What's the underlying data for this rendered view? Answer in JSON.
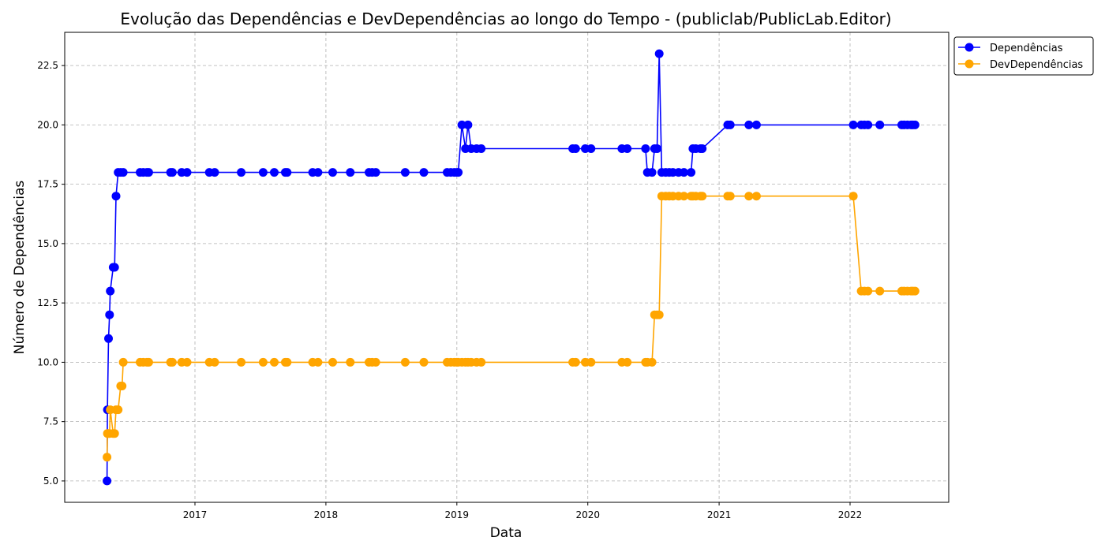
{
  "chart_data": {
    "type": "line",
    "title": "Evolução das Dependências e DevDependências ao longo do Tempo - (publiclab/PublicLab.Editor)",
    "xlabel": "Data",
    "ylabel": "Número de Dependências",
    "x_tick_labels": [
      "2017",
      "2018",
      "2019",
      "2020",
      "2021",
      "2022"
    ],
    "y_tick_labels": [
      "5.0",
      "7.5",
      "10.0",
      "12.5",
      "15.0",
      "17.5",
      "20.0",
      "22.5"
    ],
    "xlim": [
      "2016-01-04",
      "2022-10-03"
    ],
    "ylim": [
      4.1,
      23.9
    ],
    "grid": true,
    "legend_position": "outside-top-right",
    "series": [
      {
        "name": "Dependências",
        "color": "#0000ff",
        "points": [
          [
            "2016-05-01",
            5
          ],
          [
            "2016-05-02",
            8
          ],
          [
            "2016-05-05",
            11
          ],
          [
            "2016-05-08",
            12
          ],
          [
            "2016-05-10",
            13
          ],
          [
            "2016-05-18",
            14
          ],
          [
            "2016-05-22",
            14
          ],
          [
            "2016-05-26",
            17
          ],
          [
            "2016-06-01",
            18
          ],
          [
            "2016-06-08",
            18
          ],
          [
            "2016-06-15",
            18
          ],
          [
            "2016-08-01",
            18
          ],
          [
            "2016-08-10",
            18
          ],
          [
            "2016-08-20",
            18
          ],
          [
            "2016-08-25",
            18
          ],
          [
            "2016-10-25",
            18
          ],
          [
            "2016-10-30",
            18
          ],
          [
            "2016-11-25",
            18
          ],
          [
            "2016-12-10",
            18
          ],
          [
            "2017-02-10",
            18
          ],
          [
            "2017-02-25",
            18
          ],
          [
            "2017-05-10",
            18
          ],
          [
            "2017-07-10",
            18
          ],
          [
            "2017-08-10",
            18
          ],
          [
            "2017-09-10",
            18
          ],
          [
            "2017-09-15",
            18
          ],
          [
            "2017-11-25",
            18
          ],
          [
            "2017-12-10",
            18
          ],
          [
            "2018-01-20",
            18
          ],
          [
            "2018-03-10",
            18
          ],
          [
            "2018-05-01",
            18
          ],
          [
            "2018-05-10",
            18
          ],
          [
            "2018-05-20",
            18
          ],
          [
            "2018-08-10",
            18
          ],
          [
            "2018-10-01",
            18
          ],
          [
            "2018-12-05",
            18
          ],
          [
            "2018-12-15",
            18
          ],
          [
            "2018-12-25",
            18
          ],
          [
            "2019-01-01",
            18
          ],
          [
            "2019-01-05",
            18
          ],
          [
            "2019-01-15",
            20
          ],
          [
            "2019-01-25",
            19
          ],
          [
            "2019-02-01",
            20
          ],
          [
            "2019-02-10",
            19
          ],
          [
            "2019-02-25",
            19
          ],
          [
            "2019-03-10",
            19
          ],
          [
            "2019-11-20",
            19
          ],
          [
            "2019-11-28",
            19
          ],
          [
            "2019-12-25",
            19
          ],
          [
            "2020-01-10",
            19
          ],
          [
            "2020-04-05",
            19
          ],
          [
            "2020-04-20",
            19
          ],
          [
            "2020-06-10",
            19
          ],
          [
            "2020-06-15",
            18
          ],
          [
            "2020-06-28",
            18
          ],
          [
            "2020-07-05",
            19
          ],
          [
            "2020-07-12",
            19
          ],
          [
            "2020-07-18",
            23
          ],
          [
            "2020-07-25",
            18
          ],
          [
            "2020-08-05",
            18
          ],
          [
            "2020-08-15",
            18
          ],
          [
            "2020-08-25",
            18
          ],
          [
            "2020-09-10",
            18
          ],
          [
            "2020-09-25",
            18
          ],
          [
            "2020-10-15",
            18
          ],
          [
            "2020-10-20",
            19
          ],
          [
            "2020-10-28",
            19
          ],
          [
            "2020-11-10",
            19
          ],
          [
            "2020-11-15",
            19
          ],
          [
            "2021-01-25",
            20
          ],
          [
            "2021-02-01",
            20
          ],
          [
            "2021-03-25",
            20
          ],
          [
            "2021-04-15",
            20
          ],
          [
            "2022-01-10",
            20
          ],
          [
            "2022-02-01",
            20
          ],
          [
            "2022-02-10",
            20
          ],
          [
            "2022-02-20",
            20
          ],
          [
            "2022-03-25",
            20
          ],
          [
            "2022-05-25",
            20
          ],
          [
            "2022-06-01",
            20
          ],
          [
            "2022-06-10",
            20
          ],
          [
            "2022-06-20",
            20
          ],
          [
            "2022-06-25",
            20
          ],
          [
            "2022-07-01",
            20
          ]
        ]
      },
      {
        "name": "DevDependências",
        "color": "#ffa500",
        "points": [
          [
            "2016-05-01",
            6
          ],
          [
            "2016-05-02",
            7
          ],
          [
            "2016-05-05",
            7
          ],
          [
            "2016-05-08",
            7
          ],
          [
            "2016-05-10",
            8
          ],
          [
            "2016-05-18",
            7
          ],
          [
            "2016-05-22",
            7
          ],
          [
            "2016-05-26",
            8
          ],
          [
            "2016-06-01",
            8
          ],
          [
            "2016-06-08",
            9
          ],
          [
            "2016-06-12",
            9
          ],
          [
            "2016-06-15",
            10
          ],
          [
            "2016-08-01",
            10
          ],
          [
            "2016-08-10",
            10
          ],
          [
            "2016-08-20",
            10
          ],
          [
            "2016-08-25",
            10
          ],
          [
            "2016-10-25",
            10
          ],
          [
            "2016-10-30",
            10
          ],
          [
            "2016-11-25",
            10
          ],
          [
            "2016-12-10",
            10
          ],
          [
            "2017-02-10",
            10
          ],
          [
            "2017-02-25",
            10
          ],
          [
            "2017-05-10",
            10
          ],
          [
            "2017-07-10",
            10
          ],
          [
            "2017-08-10",
            10
          ],
          [
            "2017-09-10",
            10
          ],
          [
            "2017-09-15",
            10
          ],
          [
            "2017-11-25",
            10
          ],
          [
            "2017-12-10",
            10
          ],
          [
            "2018-01-20",
            10
          ],
          [
            "2018-03-10",
            10
          ],
          [
            "2018-05-01",
            10
          ],
          [
            "2018-05-10",
            10
          ],
          [
            "2018-05-20",
            10
          ],
          [
            "2018-08-10",
            10
          ],
          [
            "2018-10-01",
            10
          ],
          [
            "2018-12-05",
            10
          ],
          [
            "2018-12-15",
            10
          ],
          [
            "2018-12-25",
            10
          ],
          [
            "2019-01-01",
            10
          ],
          [
            "2019-01-05",
            10
          ],
          [
            "2019-01-15",
            10
          ],
          [
            "2019-01-25",
            10
          ],
          [
            "2019-02-01",
            10
          ],
          [
            "2019-02-10",
            10
          ],
          [
            "2019-02-25",
            10
          ],
          [
            "2019-03-10",
            10
          ],
          [
            "2019-11-20",
            10
          ],
          [
            "2019-11-28",
            10
          ],
          [
            "2019-12-25",
            10
          ],
          [
            "2020-01-10",
            10
          ],
          [
            "2020-04-05",
            10
          ],
          [
            "2020-04-20",
            10
          ],
          [
            "2020-06-10",
            10
          ],
          [
            "2020-06-15",
            10
          ],
          [
            "2020-06-28",
            10
          ],
          [
            "2020-07-05",
            12
          ],
          [
            "2020-07-12",
            12
          ],
          [
            "2020-07-18",
            12
          ],
          [
            "2020-07-25",
            17
          ],
          [
            "2020-08-05",
            17
          ],
          [
            "2020-08-15",
            17
          ],
          [
            "2020-08-25",
            17
          ],
          [
            "2020-09-10",
            17
          ],
          [
            "2020-09-25",
            17
          ],
          [
            "2020-10-15",
            17
          ],
          [
            "2020-10-20",
            17
          ],
          [
            "2020-10-28",
            17
          ],
          [
            "2020-11-10",
            17
          ],
          [
            "2020-11-15",
            17
          ],
          [
            "2021-01-25",
            17
          ],
          [
            "2021-02-01",
            17
          ],
          [
            "2021-03-25",
            17
          ],
          [
            "2021-04-15",
            17
          ],
          [
            "2022-01-10",
            17
          ],
          [
            "2022-02-01",
            13
          ],
          [
            "2022-02-10",
            13
          ],
          [
            "2022-02-20",
            13
          ],
          [
            "2022-03-25",
            13
          ],
          [
            "2022-05-25",
            13
          ],
          [
            "2022-06-01",
            13
          ],
          [
            "2022-06-10",
            13
          ],
          [
            "2022-06-20",
            13
          ],
          [
            "2022-06-25",
            13
          ],
          [
            "2022-07-01",
            13
          ]
        ]
      }
    ]
  }
}
